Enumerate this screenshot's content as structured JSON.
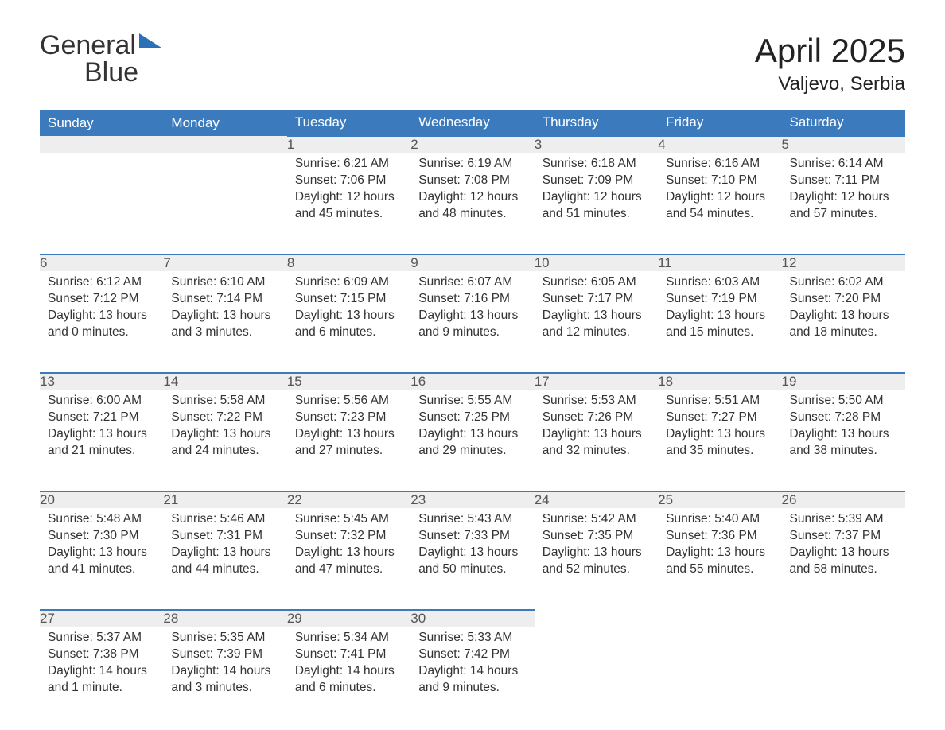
{
  "brand": {
    "word1": "General",
    "word2": "Blue"
  },
  "title": "April 2025",
  "location": "Valjevo, Serbia",
  "colors": {
    "header_bg": "#3a7abd",
    "header_text": "#ffffff",
    "daynum_bg": "#eeeeee",
    "daynum_border": "#3a7abd",
    "text": "#333333",
    "brand_blue": "#2a71b8",
    "page_bg": "#ffffff"
  },
  "typography": {
    "title_fontsize": 42,
    "location_fontsize": 24,
    "header_fontsize": 17,
    "daynum_fontsize": 17,
    "body_fontsize": 15.5
  },
  "weekdays": [
    "Sunday",
    "Monday",
    "Tuesday",
    "Wednesday",
    "Thursday",
    "Friday",
    "Saturday"
  ],
  "weeks": [
    [
      null,
      null,
      {
        "n": "1",
        "sr": "Sunrise: 6:21 AM",
        "ss": "Sunset: 7:06 PM",
        "dl": "Daylight: 12 hours and 45 minutes."
      },
      {
        "n": "2",
        "sr": "Sunrise: 6:19 AM",
        "ss": "Sunset: 7:08 PM",
        "dl": "Daylight: 12 hours and 48 minutes."
      },
      {
        "n": "3",
        "sr": "Sunrise: 6:18 AM",
        "ss": "Sunset: 7:09 PM",
        "dl": "Daylight: 12 hours and 51 minutes."
      },
      {
        "n": "4",
        "sr": "Sunrise: 6:16 AM",
        "ss": "Sunset: 7:10 PM",
        "dl": "Daylight: 12 hours and 54 minutes."
      },
      {
        "n": "5",
        "sr": "Sunrise: 6:14 AM",
        "ss": "Sunset: 7:11 PM",
        "dl": "Daylight: 12 hours and 57 minutes."
      }
    ],
    [
      {
        "n": "6",
        "sr": "Sunrise: 6:12 AM",
        "ss": "Sunset: 7:12 PM",
        "dl": "Daylight: 13 hours and 0 minutes."
      },
      {
        "n": "7",
        "sr": "Sunrise: 6:10 AM",
        "ss": "Sunset: 7:14 PM",
        "dl": "Daylight: 13 hours and 3 minutes."
      },
      {
        "n": "8",
        "sr": "Sunrise: 6:09 AM",
        "ss": "Sunset: 7:15 PM",
        "dl": "Daylight: 13 hours and 6 minutes."
      },
      {
        "n": "9",
        "sr": "Sunrise: 6:07 AM",
        "ss": "Sunset: 7:16 PM",
        "dl": "Daylight: 13 hours and 9 minutes."
      },
      {
        "n": "10",
        "sr": "Sunrise: 6:05 AM",
        "ss": "Sunset: 7:17 PM",
        "dl": "Daylight: 13 hours and 12 minutes."
      },
      {
        "n": "11",
        "sr": "Sunrise: 6:03 AM",
        "ss": "Sunset: 7:19 PM",
        "dl": "Daylight: 13 hours and 15 minutes."
      },
      {
        "n": "12",
        "sr": "Sunrise: 6:02 AM",
        "ss": "Sunset: 7:20 PM",
        "dl": "Daylight: 13 hours and 18 minutes."
      }
    ],
    [
      {
        "n": "13",
        "sr": "Sunrise: 6:00 AM",
        "ss": "Sunset: 7:21 PM",
        "dl": "Daylight: 13 hours and 21 minutes."
      },
      {
        "n": "14",
        "sr": "Sunrise: 5:58 AM",
        "ss": "Sunset: 7:22 PM",
        "dl": "Daylight: 13 hours and 24 minutes."
      },
      {
        "n": "15",
        "sr": "Sunrise: 5:56 AM",
        "ss": "Sunset: 7:23 PM",
        "dl": "Daylight: 13 hours and 27 minutes."
      },
      {
        "n": "16",
        "sr": "Sunrise: 5:55 AM",
        "ss": "Sunset: 7:25 PM",
        "dl": "Daylight: 13 hours and 29 minutes."
      },
      {
        "n": "17",
        "sr": "Sunrise: 5:53 AM",
        "ss": "Sunset: 7:26 PM",
        "dl": "Daylight: 13 hours and 32 minutes."
      },
      {
        "n": "18",
        "sr": "Sunrise: 5:51 AM",
        "ss": "Sunset: 7:27 PM",
        "dl": "Daylight: 13 hours and 35 minutes."
      },
      {
        "n": "19",
        "sr": "Sunrise: 5:50 AM",
        "ss": "Sunset: 7:28 PM",
        "dl": "Daylight: 13 hours and 38 minutes."
      }
    ],
    [
      {
        "n": "20",
        "sr": "Sunrise: 5:48 AM",
        "ss": "Sunset: 7:30 PM",
        "dl": "Daylight: 13 hours and 41 minutes."
      },
      {
        "n": "21",
        "sr": "Sunrise: 5:46 AM",
        "ss": "Sunset: 7:31 PM",
        "dl": "Daylight: 13 hours and 44 minutes."
      },
      {
        "n": "22",
        "sr": "Sunrise: 5:45 AM",
        "ss": "Sunset: 7:32 PM",
        "dl": "Daylight: 13 hours and 47 minutes."
      },
      {
        "n": "23",
        "sr": "Sunrise: 5:43 AM",
        "ss": "Sunset: 7:33 PM",
        "dl": "Daylight: 13 hours and 50 minutes."
      },
      {
        "n": "24",
        "sr": "Sunrise: 5:42 AM",
        "ss": "Sunset: 7:35 PM",
        "dl": "Daylight: 13 hours and 52 minutes."
      },
      {
        "n": "25",
        "sr": "Sunrise: 5:40 AM",
        "ss": "Sunset: 7:36 PM",
        "dl": "Daylight: 13 hours and 55 minutes."
      },
      {
        "n": "26",
        "sr": "Sunrise: 5:39 AM",
        "ss": "Sunset: 7:37 PM",
        "dl": "Daylight: 13 hours and 58 minutes."
      }
    ],
    [
      {
        "n": "27",
        "sr": "Sunrise: 5:37 AM",
        "ss": "Sunset: 7:38 PM",
        "dl": "Daylight: 14 hours and 1 minute."
      },
      {
        "n": "28",
        "sr": "Sunrise: 5:35 AM",
        "ss": "Sunset: 7:39 PM",
        "dl": "Daylight: 14 hours and 3 minutes."
      },
      {
        "n": "29",
        "sr": "Sunrise: 5:34 AM",
        "ss": "Sunset: 7:41 PM",
        "dl": "Daylight: 14 hours and 6 minutes."
      },
      {
        "n": "30",
        "sr": "Sunrise: 5:33 AM",
        "ss": "Sunset: 7:42 PM",
        "dl": "Daylight: 14 hours and 9 minutes."
      },
      null,
      null,
      null
    ]
  ]
}
